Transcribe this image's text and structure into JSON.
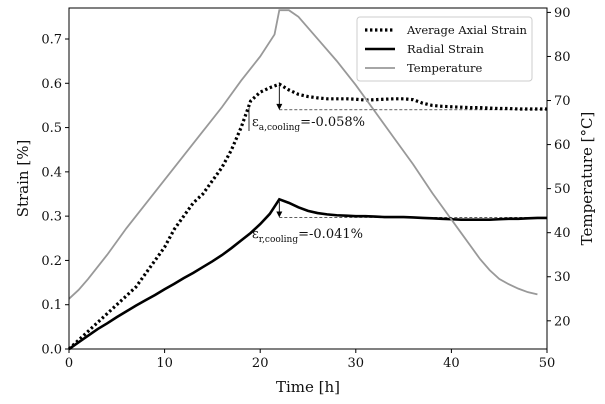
{
  "chart_data": {
    "type": "line",
    "xlabel": "Time [h]",
    "ylabel_left": "Strain [%]",
    "ylabel_right": "Temperature [°C]",
    "xlim": [
      0,
      50
    ],
    "ylim_left": [
      0,
      0.77
    ],
    "ylim_right": [
      13.6,
      91
    ],
    "x_ticks": [
      0,
      10,
      20,
      30,
      40,
      50
    ],
    "y_ticks_left": [
      0.0,
      0.1,
      0.2,
      0.3,
      0.4,
      0.5,
      0.6,
      0.7
    ],
    "y_ticks_right": [
      20,
      30,
      40,
      50,
      60,
      70,
      80,
      90
    ],
    "grid": false,
    "legend_position": "top-right",
    "series": [
      {
        "name": "Average Axial Strain",
        "axis": "left",
        "style": "dotted",
        "color": "#000000",
        "x": [
          0,
          1,
          2,
          3,
          4,
          5,
          6,
          7,
          8,
          9,
          10,
          11,
          12,
          13,
          14,
          15,
          16,
          17,
          18,
          19,
          20,
          21,
          22,
          23,
          24,
          25,
          26,
          27,
          28,
          29,
          30,
          31,
          32,
          33,
          34,
          35,
          36,
          37,
          38,
          39,
          40,
          41,
          42,
          43,
          44,
          45,
          46,
          47,
          48,
          49,
          50
        ],
        "y": [
          0.0,
          0.02,
          0.04,
          0.06,
          0.08,
          0.1,
          0.12,
          0.14,
          0.17,
          0.2,
          0.23,
          0.27,
          0.3,
          0.33,
          0.35,
          0.38,
          0.41,
          0.45,
          0.5,
          0.56,
          0.58,
          0.59,
          0.598,
          0.585,
          0.575,
          0.57,
          0.567,
          0.565,
          0.565,
          0.565,
          0.564,
          0.562,
          0.563,
          0.564,
          0.565,
          0.565,
          0.563,
          0.555,
          0.55,
          0.548,
          0.547,
          0.546,
          0.545,
          0.545,
          0.544,
          0.543,
          0.543,
          0.542,
          0.542,
          0.542,
          0.542
        ]
      },
      {
        "name": "Radial Strain",
        "axis": "left",
        "style": "solid",
        "color": "#000000",
        "x": [
          0,
          1,
          2,
          3,
          4,
          5,
          6,
          7,
          8,
          9,
          10,
          11,
          12,
          13,
          14,
          15,
          16,
          17,
          18,
          19,
          20,
          21,
          22,
          23,
          24,
          25,
          26,
          27,
          28,
          29,
          30,
          31,
          32,
          33,
          34,
          35,
          36,
          37,
          38,
          39,
          40,
          41,
          42,
          43,
          44,
          45,
          46,
          47,
          48,
          49,
          50
        ],
        "y": [
          0.0,
          0.015,
          0.03,
          0.045,
          0.058,
          0.072,
          0.085,
          0.098,
          0.11,
          0.122,
          0.135,
          0.147,
          0.16,
          0.172,
          0.185,
          0.198,
          0.212,
          0.228,
          0.245,
          0.262,
          0.282,
          0.305,
          0.338,
          0.33,
          0.32,
          0.312,
          0.307,
          0.304,
          0.302,
          0.301,
          0.3,
          0.3,
          0.299,
          0.298,
          0.298,
          0.298,
          0.297,
          0.296,
          0.295,
          0.294,
          0.293,
          0.292,
          0.292,
          0.292,
          0.292,
          0.293,
          0.294,
          0.294,
          0.295,
          0.296,
          0.296
        ]
      },
      {
        "name": "Temperature",
        "axis": "right",
        "style": "solid",
        "color": "#999999",
        "x": [
          0,
          1,
          2,
          4,
          6,
          8,
          10,
          12,
          14,
          16,
          18,
          20,
          21.5,
          22,
          23,
          24,
          26,
          28,
          30,
          32,
          34,
          36,
          38,
          39,
          40,
          41,
          42,
          43,
          44,
          45,
          46,
          47,
          48,
          49
        ],
        "y": [
          25,
          27,
          29.5,
          35,
          41,
          46.5,
          52,
          57.5,
          63,
          68.5,
          74.5,
          80,
          85,
          90.5,
          90.5,
          89,
          84,
          79,
          73.5,
          67.5,
          61.5,
          55.5,
          49,
          46,
          43,
          40,
          37,
          34,
          31.5,
          29.5,
          28.3,
          27.3,
          26.5,
          26
        ]
      }
    ],
    "annotations": [
      {
        "text_main": "ε",
        "text_sub": "a,cooling",
        "text_value": "=-0.058%",
        "x": 22,
        "y_top": 0.598,
        "y_bottom": 0.54
      },
      {
        "text_main": "ε",
        "text_sub": "r,cooling",
        "text_value": "=-0.041%",
        "x": 22,
        "y_top": 0.338,
        "y_bottom": 0.297
      }
    ]
  }
}
